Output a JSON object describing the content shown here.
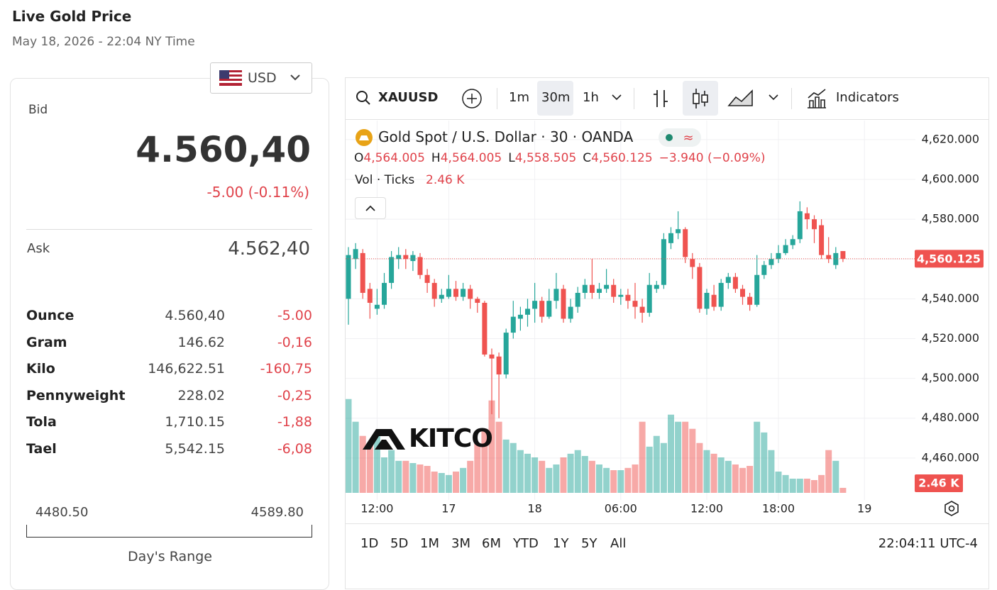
{
  "header": {
    "title": "Live Gold Price",
    "subtitle": "May 18, 2026 - 22:04 NY Time"
  },
  "currency": "USD",
  "bid": {
    "label": "Bid",
    "value": "4.560,40",
    "change": "-5.00 (-0.11%)"
  },
  "ask": {
    "label": "Ask",
    "value": "4.562,40"
  },
  "units": [
    [
      "Ounce",
      "4.560,40",
      "-5.00"
    ],
    [
      "Gram",
      "146.62",
      "-0,16"
    ],
    [
      "Kilo",
      "146,622.51",
      "-160,75"
    ],
    [
      "Pennyweight",
      "228.02",
      "-0,25"
    ],
    [
      "Tola",
      "1,710.15",
      "-1,88"
    ],
    [
      "Tael",
      "5,542.15",
      "-6,08"
    ]
  ],
  "range": {
    "low": "4480.50",
    "high": "4589.80",
    "label": "Day's Range"
  },
  "toolbar": {
    "symbol": "XAUUSD",
    "intervals": [
      "1m",
      "30m",
      "1h"
    ],
    "indicators": "Indicators"
  },
  "legend": {
    "title": "Gold Spot / U.S. Dollar · 30 · OANDA",
    "ohlc": [
      [
        "O",
        "4,564.005"
      ],
      [
        "H",
        "4,564.005"
      ],
      [
        "L",
        "4,558.505"
      ],
      [
        "C",
        "4,560.125"
      ]
    ],
    "change": "−3.940 (−0.09%)",
    "volume_title": "Vol · Ticks"
  },
  "watermark": "KITCO",
  "ranges": [
    "1D",
    "5D",
    "1M",
    "3M",
    "6M",
    "YTD",
    "1Y",
    "5Y",
    "All"
  ],
  "clock": "22:04:11 UTC-4",
  "chart_data": {
    "type": "candlestick",
    "open": [
      4540,
      4560,
      4563,
      4545,
      4535,
      4537,
      4548,
      4560,
      4562,
      4559,
      4561,
      4552,
      4548,
      4540,
      4541,
      4545,
      4541,
      4545,
      4540,
      4538,
      4512,
      4511,
      4502,
      4523,
      4530,
      4532,
      4535,
      4539,
      4531,
      4539,
      4545,
      4530,
      4536,
      4543,
      4547,
      4543,
      4545,
      4547,
      4541,
      4542,
      4539,
      4536,
      4533,
      4545,
      4547,
      4568,
      4573,
      4575,
      4560,
      4556,
      4535,
      4542,
      4536,
      4548,
      4551,
      4545,
      4541,
      4537,
      4552,
      4557,
      4560,
      4563,
      4567,
      4570,
      4583,
      4580,
      4577,
      4562,
      4557,
      4564.005
    ],
    "high": [
      4566,
      4568,
      4565,
      4548,
      4545,
      4553,
      4564,
      4566,
      4565,
      4564,
      4563,
      4555,
      4550,
      4545,
      4552,
      4549,
      4548,
      4547,
      4541,
      4539,
      4515,
      4513,
      4525,
      4539,
      4536,
      4540,
      4548,
      4541,
      4545,
      4553,
      4547,
      4540,
      4546,
      4550,
      4560,
      4548,
      4555,
      4550,
      4545,
      4545,
      4548,
      4540,
      4553,
      4549,
      4573,
      4576,
      4584,
      4576,
      4563,
      4558,
      4545,
      4547,
      4550,
      4553,
      4553,
      4547,
      4543,
      4562,
      4559,
      4563,
      4567,
      4570,
      4572,
      4589,
      4586,
      4582,
      4580,
      4571,
      4566,
      4564.005
    ],
    "low": [
      4527,
      4555,
      4540,
      4530,
      4532,
      4535,
      4545,
      4555,
      4555,
      4554,
      4550,
      4543,
      4536,
      4538,
      4540,
      4539,
      4539,
      4535,
      4533,
      4511,
      4482,
      4480,
      4500,
      4520,
      4524,
      4526,
      4528,
      4528,
      4530,
      4535,
      4528,
      4528,
      4533,
      4540,
      4540,
      4540,
      4543,
      4538,
      4537,
      4535,
      4530,
      4528,
      4531,
      4543,
      4545,
      4565,
      4570,
      4558,
      4550,
      4533,
      4532,
      4534,
      4534,
      4545,
      4543,
      4537,
      4534,
      4536,
      4550,
      4555,
      4558,
      4562,
      4565,
      4568,
      4575,
      4568,
      4560,
      4558,
      4555,
      4558.505
    ],
    "close": [
      4562,
      4565,
      4543,
      4538,
      4537,
      4548,
      4561,
      4562,
      4560,
      4562,
      4552,
      4548,
      4540,
      4542,
      4545,
      4541,
      4545,
      4540,
      4538,
      4512,
      4510,
      4502,
      4523,
      4531,
      4532,
      4535,
      4539,
      4531,
      4539,
      4545,
      4530,
      4536,
      4543,
      4547,
      4543,
      4545,
      4547,
      4541,
      4542,
      4539,
      4536,
      4533,
      4547,
      4547,
      4570,
      4573,
      4575,
      4561,
      4556,
      4535,
      4543,
      4536,
      4548,
      4551,
      4545,
      4541,
      4537,
      4552,
      4557,
      4560,
      4563,
      4567,
      4570,
      4584,
      4580,
      4575,
      4562,
      4560,
      4563,
      4560.125
    ],
    "volume": [
      46.3,
      35.1,
      28.1,
      24.6,
      28.1,
      17.5,
      21.1,
      15.8,
      15.8,
      14.7,
      14.0,
      13.3,
      10.5,
      9.8,
      8.8,
      10.5,
      12.3,
      15.8,
      24.6,
      31.6,
      45.6,
      35.1,
      26.3,
      24.6,
      21.1,
      19.3,
      17.5,
      15.8,
      12.3,
      14.0,
      17.5,
      19.3,
      21.1,
      18.2,
      15.8,
      14.0,
      12.3,
      11.2,
      11.2,
      12.3,
      14.0,
      35.1,
      22.8,
      28.1,
      24.6,
      38.6,
      35.1,
      35.1,
      31.6,
      24.6,
      21.1,
      19.3,
      17.5,
      15.8,
      14.0,
      12.3,
      13.3,
      35.1,
      29.8,
      21.1,
      10.5,
      8.8,
      7.0,
      7.0,
      7.0,
      6.3,
      8.8,
      21.1,
      15.8,
      2.46
    ],
    "last_close_label": "4,560.125",
    "last_volume_label": "2.46 K",
    "ylim": [
      4440.7,
      4629.6
    ],
    "yticks": [
      {
        "value": 4620,
        "label": "4,620.000"
      },
      {
        "value": 4600,
        "label": "4,600.000"
      },
      {
        "value": 4580,
        "label": "4,580.000"
      },
      {
        "value": 4560,
        "label": "4,560.000"
      },
      {
        "value": 4540,
        "label": "4,540.000"
      },
      {
        "value": 4520,
        "label": "4,520.000"
      },
      {
        "value": 4500,
        "label": "4,500.000"
      },
      {
        "value": 4480,
        "label": "4,480.000"
      },
      {
        "value": 4460,
        "label": "4,460.000"
      }
    ],
    "xticks": [
      {
        "value": 4,
        "label": "12:00"
      },
      {
        "value": 14,
        "label": "17"
      },
      {
        "value": 26,
        "label": "18"
      },
      {
        "value": 38,
        "label": "06:00"
      },
      {
        "value": 50,
        "label": "12:00"
      },
      {
        "value": 60,
        "label": "18:00"
      },
      {
        "value": 72,
        "label": "19"
      }
    ],
    "volume_ylim": [
      0,
      49
    ],
    "grid": true,
    "up_color": "#26a69a",
    "down_color": "#ef5350"
  }
}
